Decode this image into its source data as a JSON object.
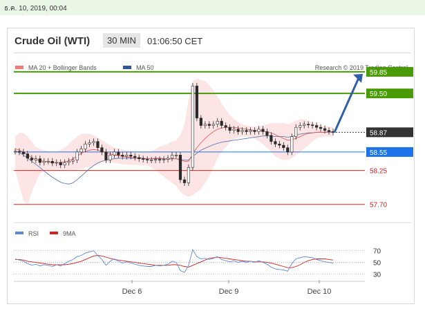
{
  "datetime_stamp": "ธ.ค. 10, 2019, 00:04",
  "header": {
    "title": "Crude Oil (WTI)",
    "timeframe": "30 MIN",
    "time": "01:06:50 CET"
  },
  "chart_data": [
    {
      "type": "line",
      "legend": [
        "MA 20 + Bollinger Bands",
        "MA 50"
      ],
      "source_text": "Research © 2019 Trading Central",
      "x_ticks": [
        "Dec 6",
        "Dec 9",
        "Dec 10"
      ],
      "ylim": [
        57.45,
        59.95
      ],
      "close": [
        58.56,
        58.55,
        58.52,
        58.45,
        58.42,
        58.44,
        58.38,
        58.4,
        58.4,
        58.37,
        58.38,
        58.34,
        58.38,
        58.4,
        58.42,
        58.55,
        58.6,
        58.68,
        58.7,
        58.72,
        58.62,
        58.55,
        58.42,
        58.5,
        58.55,
        58.5,
        58.48,
        58.5,
        58.48,
        58.46,
        58.44,
        58.43,
        58.42,
        58.42,
        58.43,
        58.42,
        58.43,
        58.45,
        58.5,
        58.5,
        58.1,
        58.05,
        58.3,
        59.62,
        59.1,
        58.98,
        59.0,
        58.98,
        59.0,
        59.05,
        58.98,
        58.95,
        58.9,
        58.92,
        58.88,
        58.9,
        58.88,
        58.9,
        58.88,
        58.92,
        58.88,
        58.82,
        58.72,
        58.68,
        58.66,
        58.62,
        58.55,
        58.8,
        58.95,
        58.98,
        59.0,
        58.99,
        58.98,
        58.95,
        58.93,
        58.9,
        58.88,
        58.87
      ],
      "ma20": [
        58.6,
        58.58,
        58.55,
        58.5,
        58.46,
        58.43,
        58.41,
        58.4,
        58.39,
        58.38,
        58.38,
        58.38,
        58.39,
        58.41,
        58.44,
        58.48,
        58.53,
        58.56,
        58.58,
        58.59,
        58.58,
        58.56,
        58.54,
        58.52,
        58.5,
        58.49,
        58.48,
        58.47,
        58.46,
        58.45,
        58.45,
        58.44,
        58.44,
        58.44,
        58.45,
        58.45,
        58.44,
        58.43,
        58.44,
        58.44,
        58.42,
        58.4,
        58.4,
        58.52,
        58.62,
        58.7,
        58.77,
        58.83,
        58.88,
        58.92,
        58.94,
        58.95,
        58.95,
        58.95,
        58.94,
        58.93,
        58.92,
        58.91,
        58.9,
        58.9,
        58.89,
        58.88,
        58.86,
        58.83,
        58.8,
        58.77,
        58.74,
        58.75,
        58.77,
        58.8,
        58.83,
        58.85,
        58.86,
        58.87,
        58.87,
        58.87,
        58.88,
        58.88
      ],
      "ma50": [
        58.57,
        58.54,
        58.5,
        58.45,
        58.4,
        58.35,
        58.3,
        58.24,
        58.19,
        58.14,
        58.1,
        58.06,
        58.04,
        58.03,
        58.05,
        58.1,
        58.16,
        58.22,
        58.28,
        58.33,
        58.37,
        58.4,
        58.42,
        58.43,
        58.44,
        58.45,
        58.45,
        58.45,
        58.45,
        58.45,
        58.45,
        58.45,
        58.44,
        58.44,
        58.44,
        58.44,
        58.44,
        58.44,
        58.44,
        58.44,
        58.43,
        58.42,
        58.42,
        58.48,
        58.53,
        58.58,
        58.61,
        58.64,
        58.67,
        58.69,
        58.71,
        58.72,
        58.73,
        58.74,
        58.75,
        58.76,
        58.77,
        58.78,
        58.79,
        58.8,
        58.81,
        58.81,
        58.81,
        58.8,
        58.8,
        58.8,
        58.79,
        58.8,
        58.82,
        58.84,
        58.85,
        58.86,
        58.86,
        58.87,
        58.87,
        58.87,
        58.87,
        58.87
      ],
      "upper": [
        58.8,
        58.86,
        58.86,
        58.8,
        58.72,
        58.63,
        58.6,
        58.58,
        58.56,
        58.56,
        58.56,
        58.58,
        58.62,
        58.68,
        58.74,
        58.8,
        58.84,
        58.85,
        58.84,
        58.82,
        58.78,
        58.74,
        58.7,
        58.66,
        58.62,
        58.6,
        58.59,
        58.58,
        58.57,
        58.56,
        58.56,
        58.55,
        58.55,
        58.56,
        58.6,
        58.64,
        58.66,
        58.68,
        58.72,
        58.74,
        58.82,
        59.0,
        59.4,
        59.7,
        59.74,
        59.72,
        59.7,
        59.64,
        59.55,
        59.45,
        59.34,
        59.24,
        59.15,
        59.08,
        59.04,
        59.0,
        58.98,
        58.97,
        58.96,
        58.97,
        58.98,
        59.0,
        59.02,
        59.02,
        59.02,
        59.02,
        59.0,
        59.02,
        59.06,
        59.08,
        59.08,
        59.06,
        59.03,
        59.0,
        58.98,
        58.97,
        58.96,
        58.95
      ],
      "lower": [
        58.25,
        58.0,
        57.76,
        57.7,
        57.9,
        58.05,
        58.2,
        58.24,
        58.25,
        58.26,
        58.26,
        58.26,
        58.26,
        58.26,
        58.26,
        58.27,
        58.28,
        58.3,
        58.31,
        58.33,
        58.36,
        58.38,
        58.39,
        58.38,
        58.37,
        58.36,
        58.35,
        58.35,
        58.34,
        58.34,
        58.34,
        58.33,
        58.33,
        58.3,
        58.25,
        58.2,
        58.15,
        58.1,
        58.05,
        58.0,
        57.9,
        57.85,
        57.82,
        57.85,
        57.9,
        57.95,
        58.05,
        58.15,
        58.3,
        58.45,
        58.55,
        58.63,
        58.7,
        58.76,
        58.79,
        58.8,
        58.8,
        58.79,
        58.76,
        58.72,
        58.68,
        58.62,
        58.55,
        58.48,
        58.45,
        58.42,
        58.42,
        58.45,
        58.5,
        58.55,
        58.6,
        58.66,
        58.72,
        58.77,
        58.79,
        58.8,
        58.8,
        58.8
      ],
      "levels": [
        {
          "value": 59.85,
          "label": "59.85",
          "kind": "resistance",
          "color": "#4a9a06"
        },
        {
          "value": 59.5,
          "label": "59.50",
          "kind": "resistance",
          "color": "#4a9a06"
        },
        {
          "value": 58.87,
          "label": "58.87",
          "kind": "last",
          "color": "#333333"
        },
        {
          "value": 58.55,
          "label": "58.55",
          "kind": "pivot",
          "color": "#1e73e8"
        },
        {
          "value": 58.25,
          "label": "58.25",
          "kind": "support",
          "color": "#d42121"
        },
        {
          "value": 57.7,
          "label": "57.70",
          "kind": "support",
          "color": "#d42121"
        }
      ],
      "arrow": {
        "direction": "up",
        "from": 58.87,
        "to": 59.85,
        "color": "#2f5fa8"
      }
    },
    {
      "type": "line",
      "legend": [
        "RSI",
        "9MA"
      ],
      "y_ticks": [
        70,
        50,
        30
      ],
      "ylim": [
        20,
        85
      ],
      "rsi": [
        56,
        54,
        52,
        48,
        45,
        47,
        44,
        46,
        45,
        43,
        46,
        44,
        48,
        52,
        55,
        60,
        62,
        66,
        68,
        70,
        62,
        55,
        45,
        52,
        56,
        52,
        49,
        51,
        49,
        47,
        45,
        44,
        43,
        43,
        45,
        44,
        45,
        47,
        52,
        50,
        36,
        33,
        45,
        72,
        60,
        56,
        57,
        55,
        57,
        60,
        55,
        53,
        51,
        53,
        50,
        52,
        50,
        52,
        50,
        53,
        50,
        47,
        42,
        39,
        38,
        37,
        35,
        48,
        56,
        58,
        60,
        59,
        58,
        55,
        53,
        51,
        50,
        49
      ],
      "rsi_ma9": [
        55,
        55,
        54,
        52,
        51,
        50,
        49,
        48,
        47,
        46,
        46,
        46,
        46,
        47,
        48,
        50,
        52,
        55,
        58,
        61,
        62,
        61,
        59,
        57,
        55,
        54,
        53,
        52,
        51,
        50,
        49,
        48,
        47,
        46,
        45,
        45,
        45,
        45,
        46,
        46,
        45,
        43,
        42,
        45,
        48,
        51,
        54,
        57,
        58,
        59,
        58,
        57,
        56,
        55,
        54,
        53,
        52,
        52,
        51,
        51,
        51,
        50,
        49,
        47,
        45,
        43,
        41,
        41,
        43,
        46,
        50,
        53,
        55,
        56,
        56,
        56,
        55,
        54
      ]
    }
  ]
}
